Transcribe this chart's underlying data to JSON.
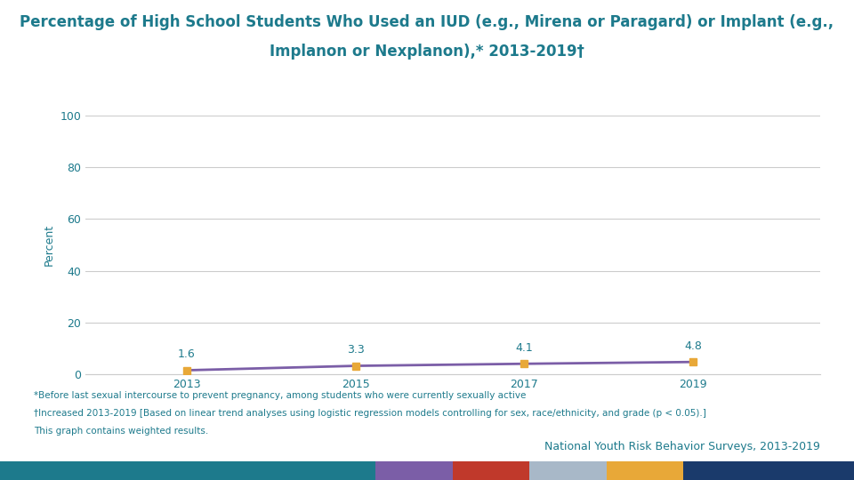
{
  "title_line1": "Percentage of High School Students Who Used an IUD (e.g., Mirena or Paragard) or Implant (e.g.,",
  "title_line2": "Implanon or Nexplanon),* 2013-2019†",
  "years": [
    2013,
    2015,
    2017,
    2019
  ],
  "values": [
    1.6,
    3.3,
    4.1,
    4.8
  ],
  "line_color": "#7B5EA7",
  "marker_color": "#E8A838",
  "marker_style": "s",
  "marker_size": 6,
  "ylabel": "Percent",
  "ylim": [
    0,
    100
  ],
  "yticks": [
    0,
    20,
    40,
    60,
    80,
    100
  ],
  "xticks": [
    2013,
    2015,
    2017,
    2019
  ],
  "title_color": "#1D7A8C",
  "axis_color": "#1D7A8C",
  "grid_color": "#CCCCCC",
  "background_color": "#FFFFFF",
  "footnote1": "*Before last sexual intercourse to prevent pregnancy, among students who were currently sexually active",
  "footnote2": "†Increased 2013-2019 [Based on linear trend analyses using logistic regression models controlling for sex, race/ethnicity, and grade (p < 0.05).]",
  "footnote3": "This graph contains weighted results.",
  "source_text": "National Youth Risk Behavior Surveys, 2013-2019",
  "label_color": "#1D7A8C",
  "title_fontsize": 12,
  "axis_label_fontsize": 9,
  "tick_fontsize": 9,
  "annotation_fontsize": 9,
  "footnote_fontsize": 7.5,
  "source_fontsize": 9,
  "bottom_bar_colors": [
    "#1D7A8C",
    "#7B5EA7",
    "#C0392B",
    "#A8B8C8",
    "#E8A838",
    "#1A3A6B"
  ],
  "bottom_bar_widths": [
    0.44,
    0.09,
    0.09,
    0.09,
    0.09,
    0.2
  ]
}
